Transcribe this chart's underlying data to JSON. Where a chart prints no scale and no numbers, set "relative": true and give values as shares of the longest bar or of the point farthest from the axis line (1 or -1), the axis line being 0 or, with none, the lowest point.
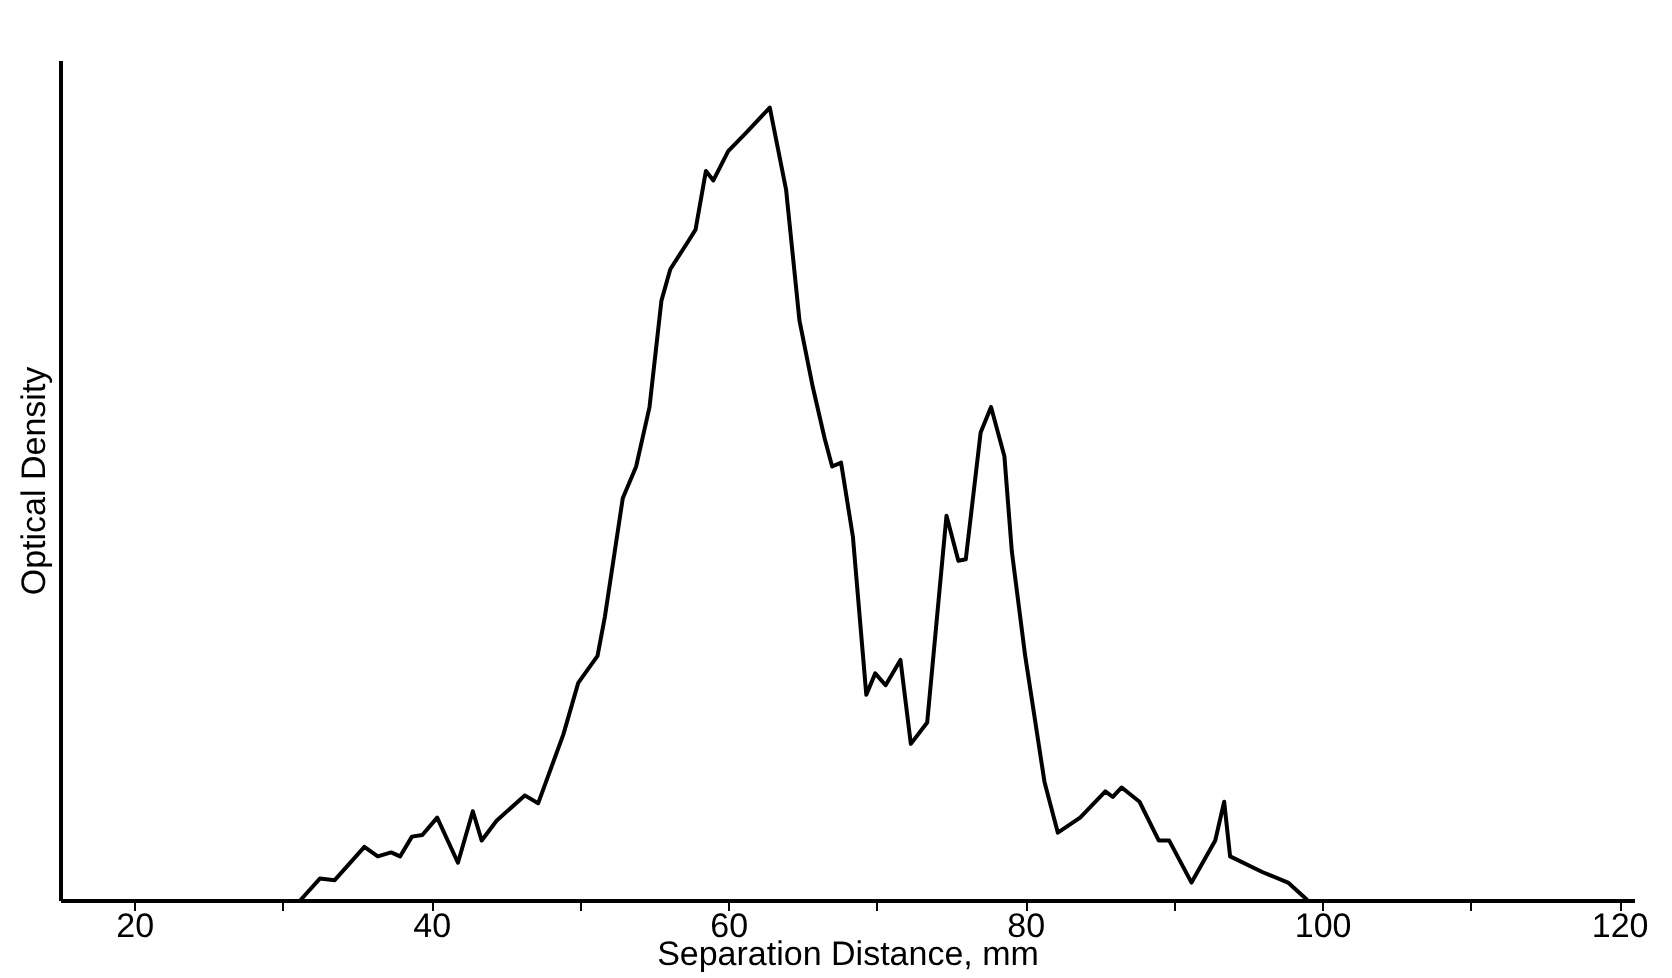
{
  "chart_data": {
    "type": "line",
    "xlabel": "Separation Distance, mm",
    "ylabel": "Optical Density",
    "relative": true,
    "color": "#000000",
    "xlim": [
      15,
      121
    ],
    "xticks": [
      20,
      {
        "value": 30,
        "label": null
      },
      40,
      {
        "value": 50,
        "label": null
      },
      60,
      {
        "value": 70,
        "label": null
      },
      80,
      {
        "value": 90,
        "label": null
      },
      100,
      {
        "value": 110,
        "label": null
      },
      120
    ],
    "x": [
      31.2,
      32.5,
      33.5,
      35.5,
      36.4,
      37.3,
      37.9,
      38.7,
      39.4,
      40.4,
      41.8,
      42.8,
      43.4,
      44.4,
      46.3,
      47.2,
      48.9,
      49.9,
      51.2,
      51.7,
      52.9,
      53.8,
      54.7,
      55.5,
      56.1,
      57.3,
      57.8,
      58.5,
      59.0,
      60.0,
      61.2,
      62.8,
      63.9,
      64.8,
      65.7,
      66.5,
      67.0,
      67.6,
      68.4,
      69.3,
      69.9,
      70.6,
      71.6,
      72.3,
      73.4,
      74.7,
      75.5,
      76.0,
      77.0,
      77.7,
      78.6,
      79.1,
      80.0,
      81.3,
      82.2,
      83.7,
      85.4,
      85.9,
      86.5,
      87.7,
      89.0,
      89.7,
      91.2,
      92.8,
      93.4,
      93.8,
      96.0,
      97.7,
      99.0
    ],
    "values": [
      0,
      0.027,
      0.025,
      0.067,
      0.055,
      0.06,
      0.055,
      0.08,
      0.082,
      0.104,
      0.047,
      0.112,
      0.075,
      0.1,
      0.132,
      0.122,
      0.209,
      0.274,
      0.308,
      0.358,
      0.507,
      0.547,
      0.622,
      0.756,
      0.796,
      0.831,
      0.846,
      0.92,
      0.908,
      0.945,
      0.968,
      1,
      0.896,
      0.731,
      0.647,
      0.582,
      0.547,
      0.552,
      0.458,
      0.259,
      0.286,
      0.271,
      0.303,
      0.197,
      0.224,
      0.485,
      0.428,
      0.43,
      0.59,
      0.622,
      0.56,
      0.44,
      0.308,
      0.149,
      0.085,
      0.104,
      0.137,
      0.13,
      0.142,
      0.124,
      0.075,
      0.075,
      0.022,
      0.075,
      0.124,
      0.055,
      0.035,
      0.022,
      0
    ],
    "grid": false,
    "marker": "none",
    "line_style": "solid"
  }
}
